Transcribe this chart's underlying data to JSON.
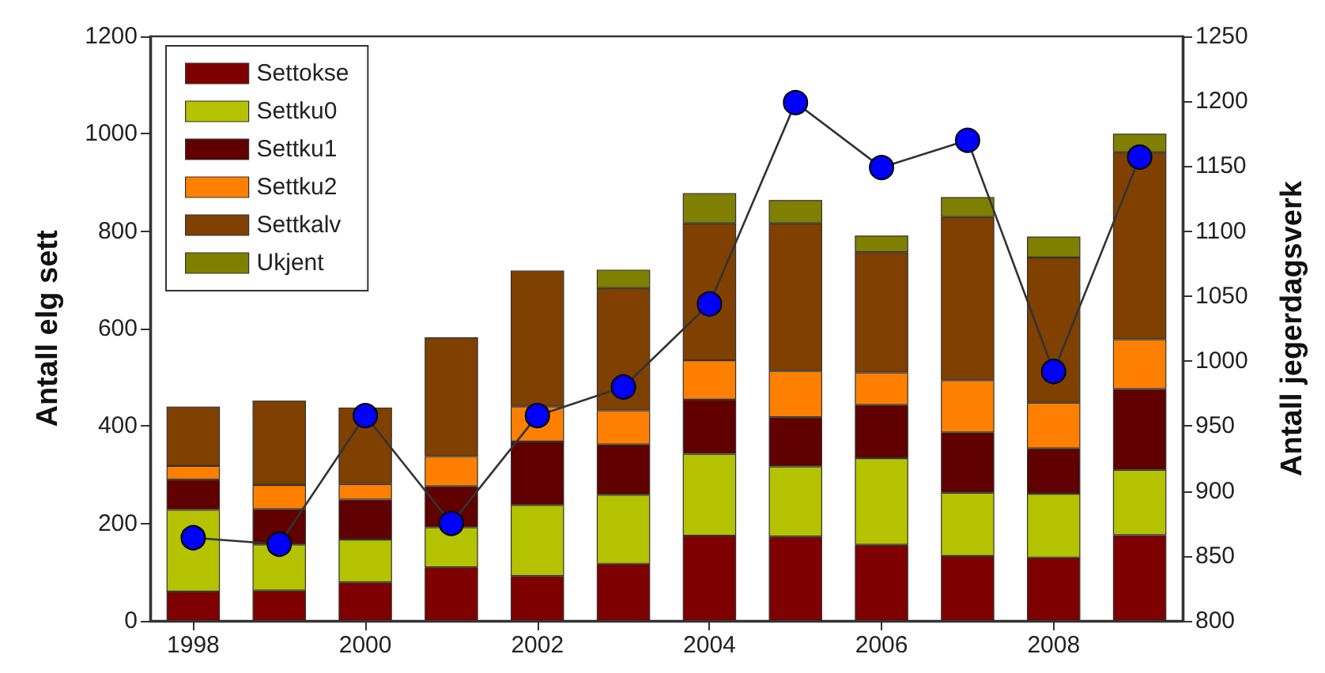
{
  "chart_data": {
    "type": "bar",
    "stacked": true,
    "ylabel": "Antall elg sett",
    "y2label": "Antall jegerdagsverk",
    "x": [
      1998,
      1999,
      2000,
      2001,
      2002,
      2003,
      2004,
      2005,
      2006,
      2007,
      2008,
      2009
    ],
    "xlim": [
      1997.5,
      2009.5
    ],
    "xticks": [
      1998,
      2000,
      2002,
      2004,
      2006,
      2008
    ],
    "ylim": [
      0,
      1200
    ],
    "yticks": [
      0,
      200,
      400,
      600,
      800,
      1000,
      1200
    ],
    "y2lim": [
      800,
      1250
    ],
    "y2ticks": [
      800,
      850,
      900,
      950,
      1000,
      1050,
      1100,
      1150,
      1200,
      1250
    ],
    "grid": false,
    "legend": "top left",
    "series": [
      {
        "name": "Settokse",
        "color": "#7f0000",
        "values": [
          60,
          62,
          79,
          110,
          92,
          117,
          175,
          173,
          156,
          133,
          130,
          176
        ]
      },
      {
        "name": "Settku0",
        "color": "#b5c200",
        "values": [
          168,
          95,
          88,
          82,
          146,
          142,
          168,
          144,
          178,
          130,
          131,
          134
        ]
      },
      {
        "name": "Settku1",
        "color": "#600000",
        "values": [
          62,
          72,
          82,
          84,
          130,
          103,
          111,
          101,
          109,
          124,
          93,
          166
        ]
      },
      {
        "name": "Settku2",
        "color": "#ff8000",
        "values": [
          28,
          50,
          32,
          62,
          72,
          70,
          81,
          95,
          67,
          107,
          94,
          102
        ]
      },
      {
        "name": "Settkalv",
        "color": "#804000",
        "values": [
          122,
          173,
          157,
          244,
          279,
          251,
          281,
          303,
          247,
          335,
          298,
          384
        ]
      },
      {
        "name": "Ukjent",
        "color": "#808000",
        "values": [
          null,
          null,
          null,
          null,
          null,
          38,
          62,
          48,
          34,
          41,
          43,
          38
        ]
      },
      {
        "type": "line",
        "axis": "y2",
        "color": "#0000ff",
        "marker": "circle",
        "line_style": "solid",
        "values": [
          864,
          859,
          958,
          875,
          958,
          980,
          1044,
          1199,
          1149,
          1170,
          992,
          1157
        ]
      }
    ]
  }
}
